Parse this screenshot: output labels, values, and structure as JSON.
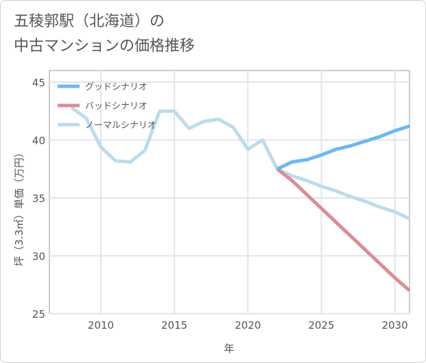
{
  "title_lines": [
    "五稜郭駅（北海道）の",
    "中古マンションの価格推移"
  ],
  "chart_data": {
    "type": "line",
    "title": "五稜郭駅（北海道）の中古マンションの価格推移",
    "xlabel": "年",
    "ylabel": "坪（3.3㎡）単価（万円）",
    "xlim": [
      2006.5,
      2031
    ],
    "ylim": [
      25,
      46
    ],
    "xticks": [
      2010,
      2015,
      2020,
      2025,
      2030
    ],
    "yticks": [
      25,
      30,
      35,
      40,
      45
    ],
    "grid": true,
    "legend_position": "top-left",
    "series": [
      {
        "name": "グッドシナリオ",
        "color": "#6db8ee",
        "x": [
          2022,
          2023,
          2024,
          2025,
          2026,
          2027,
          2028,
          2029,
          2030,
          2031
        ],
        "y": [
          37.5,
          38.1,
          38.3,
          38.7,
          39.2,
          39.5,
          39.9,
          40.3,
          40.8,
          41.2
        ]
      },
      {
        "name": "バッドシナリオ",
        "color": "#dc8c94",
        "x": [
          2022,
          2023,
          2024,
          2025,
          2026,
          2027,
          2028,
          2029,
          2030,
          2031
        ],
        "y": [
          37.5,
          36.5,
          35.3,
          34.1,
          32.9,
          31.7,
          30.5,
          29.3,
          28.1,
          27.0
        ]
      },
      {
        "name": "ノーマルシナリオ",
        "color": "#bcdcec",
        "x": [
          2008,
          2009,
          2010,
          2011,
          2012,
          2013,
          2014,
          2015,
          2016,
          2017,
          2018,
          2019,
          2020,
          2021,
          2022,
          2023,
          2024,
          2025,
          2026,
          2027,
          2028,
          2029,
          2030,
          2031
        ],
        "y": [
          42.8,
          41.9,
          39.4,
          38.2,
          38.1,
          39.1,
          42.5,
          42.5,
          41.0,
          41.6,
          41.8,
          41.1,
          39.2,
          40.0,
          37.5,
          36.9,
          36.5,
          36.0,
          35.6,
          35.1,
          34.7,
          34.2,
          33.8,
          33.2
        ]
      }
    ]
  }
}
